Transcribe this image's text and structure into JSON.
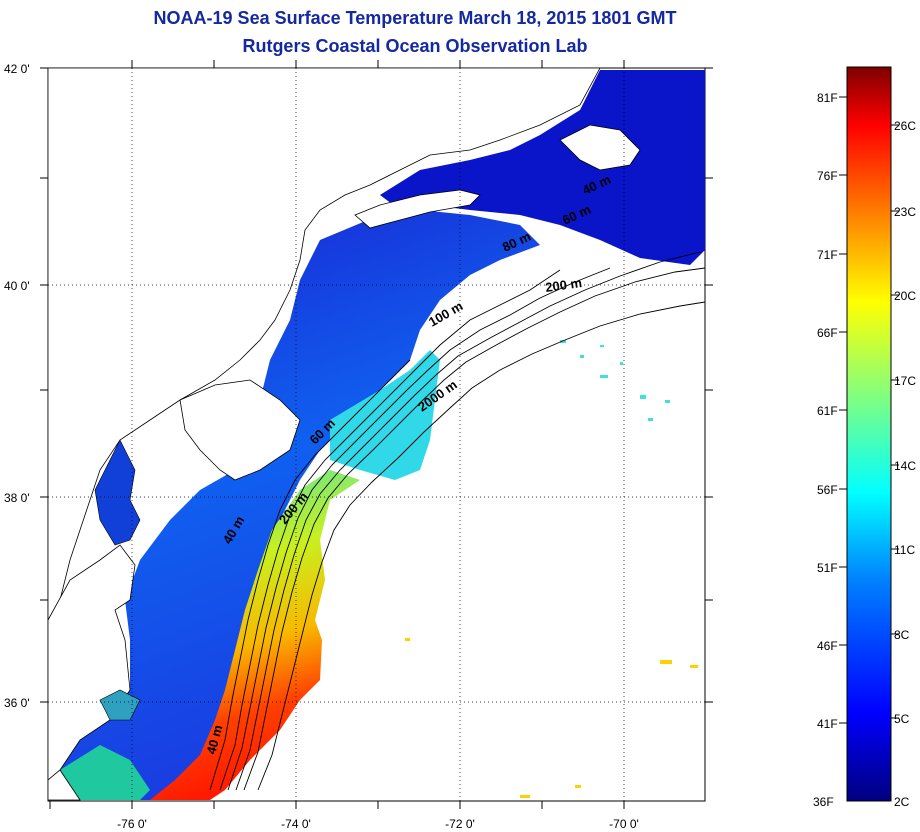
{
  "title": {
    "line1": "NOAA-19 Sea Surface Temperature March 18, 2015 1801 GMT",
    "line2": "Rutgers Coastal Ocean Observation Lab"
  },
  "axes": {
    "lat_ticks": [
      "42 0'",
      "40 0'",
      "38 0'",
      "36 0'"
    ],
    "lon_ticks": [
      "-76 0'",
      "-74 0'",
      "-72 0'",
      "-70 0'"
    ],
    "grid": true
  },
  "contours": [
    "40 m",
    "60 m",
    "80 m",
    "100 m",
    "200 m",
    "2000 m"
  ],
  "colorbar": {
    "fahrenheit": [
      "81F",
      "76F",
      "71F",
      "66F",
      "61F",
      "56F",
      "51F",
      "46F",
      "41F",
      "36F"
    ],
    "celsius": [
      "26C",
      "23C",
      "20C",
      "17C",
      "14C",
      "11C",
      "8C",
      "5C",
      "2C"
    ],
    "colors": [
      "#00007f",
      "#0000ff",
      "#0080ff",
      "#00ffff",
      "#80ff80",
      "#ffff00",
      "#ff8000",
      "#ff0000",
      "#7f0000"
    ]
  }
}
